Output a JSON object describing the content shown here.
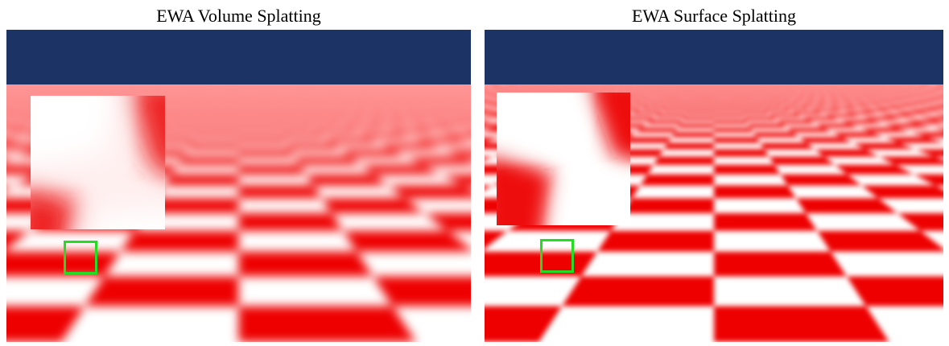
{
  "panels": [
    {
      "title": "EWA Volume Splatting",
      "style": "volume"
    },
    {
      "title": "EWA Surface Splatting",
      "style": "surface"
    }
  ],
  "colors": {
    "sky": "#1c3366",
    "checker_red": "#ee0000",
    "checker_white": "#ffffff",
    "selection_box": "#22dd22"
  }
}
